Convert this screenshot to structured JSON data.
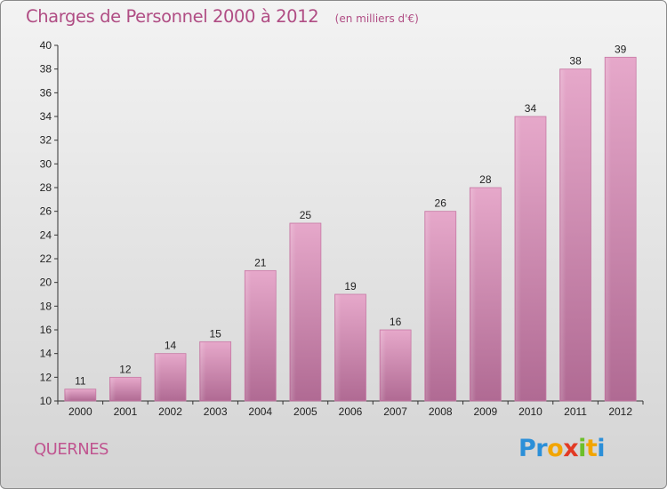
{
  "chart_data": {
    "type": "bar",
    "title": "Charges de Personnel 2000 à 2012",
    "subtitle": "(en milliers d'€)",
    "categories": [
      "2000",
      "2001",
      "2002",
      "2003",
      "2004",
      "2005",
      "2006",
      "2007",
      "2008",
      "2009",
      "2010",
      "2011",
      "2012"
    ],
    "values": [
      11,
      12,
      14,
      15,
      21,
      25,
      19,
      16,
      26,
      28,
      34,
      38,
      39
    ],
    "ylim": [
      10,
      40
    ],
    "yticks": [
      10,
      12,
      14,
      16,
      18,
      20,
      22,
      24,
      26,
      28,
      30,
      32,
      34,
      36,
      38,
      40
    ],
    "xlabel": "",
    "ylabel": "",
    "grid": false,
    "bar_color": "#d68ab3"
  },
  "commune": "QUERNES",
  "logo": {
    "letters": [
      "P",
      "r",
      "o",
      "x",
      "i",
      "t",
      "i"
    ],
    "colors": [
      "#2b8fd8",
      "#2b8fd8",
      "#f2a500",
      "#e23a24",
      "#6cbf2a",
      "#f2a500",
      "#2b8fd8"
    ]
  }
}
